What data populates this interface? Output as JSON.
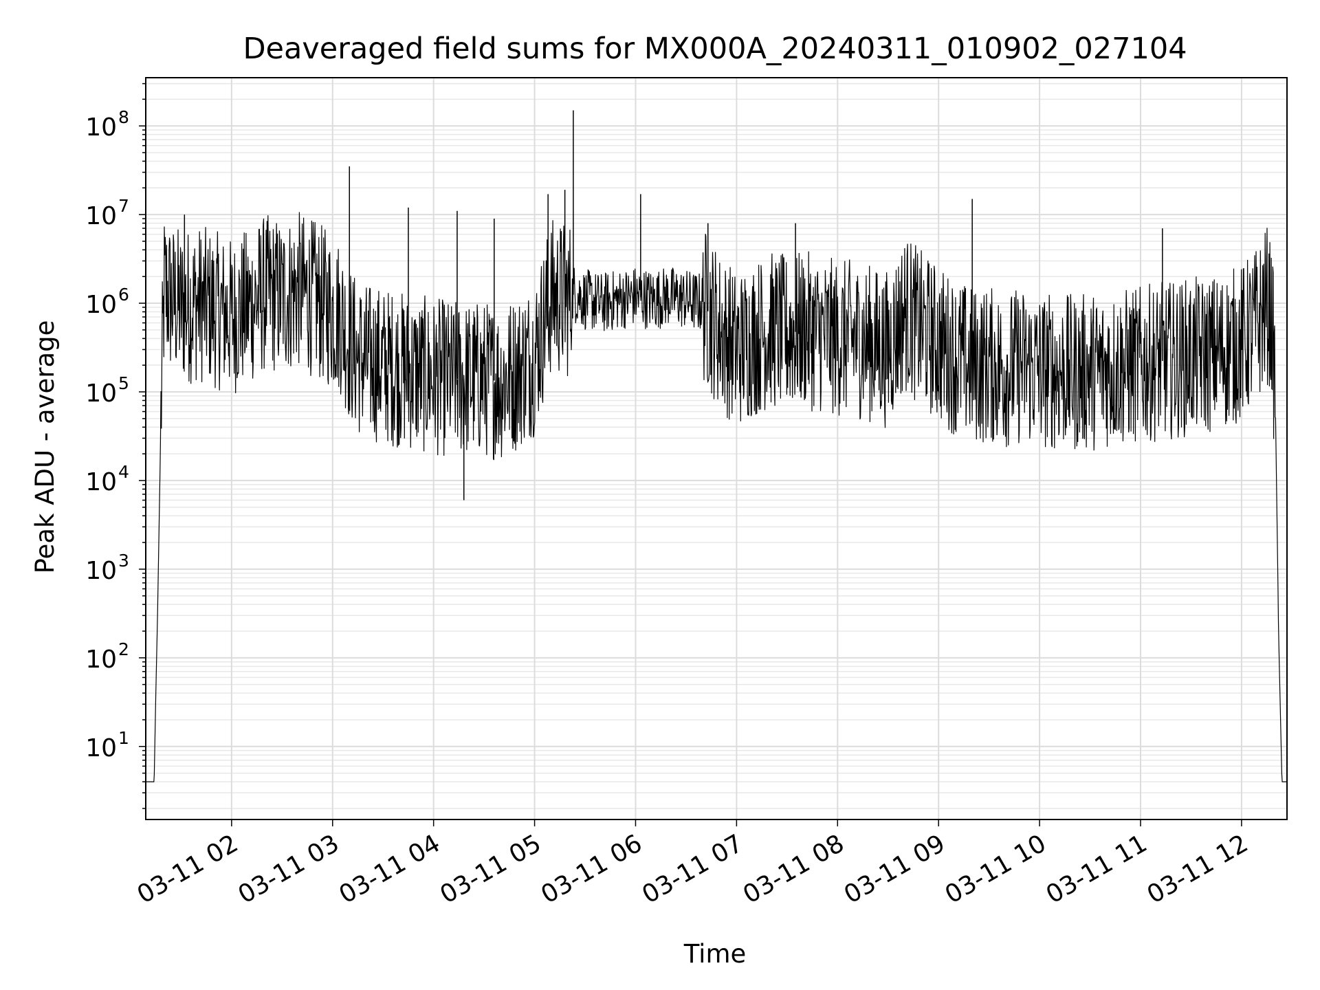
{
  "chart_data": {
    "type": "line",
    "title": "Deaveraged field sums for MX000A_20240311_010902_027104",
    "xlabel": "Time",
    "ylabel": "Peak ADU - average",
    "x_axis_type": "datetime",
    "xlim": [
      "2024-03-11 01:09",
      "2024-03-11 12:27"
    ],
    "ylim": [
      1.5,
      350000000.0
    ],
    "yscale": "log",
    "grid": "major and minor",
    "line_color": "#000000",
    "x_ticks": [
      {
        "value": "2024-03-11 02:00",
        "label": "03-11 02"
      },
      {
        "value": "2024-03-11 03:00",
        "label": "03-11 03"
      },
      {
        "value": "2024-03-11 04:00",
        "label": "03-11 04"
      },
      {
        "value": "2024-03-11 05:00",
        "label": "03-11 05"
      },
      {
        "value": "2024-03-11 06:00",
        "label": "03-11 06"
      },
      {
        "value": "2024-03-11 07:00",
        "label": "03-11 07"
      },
      {
        "value": "2024-03-11 08:00",
        "label": "03-11 08"
      },
      {
        "value": "2024-03-11 09:00",
        "label": "03-11 09"
      },
      {
        "value": "2024-03-11 10:00",
        "label": "03-11 10"
      },
      {
        "value": "2024-03-11 11:00",
        "label": "03-11 11"
      },
      {
        "value": "2024-03-11 12:00",
        "label": "03-11 12"
      }
    ],
    "y_ticks": [
      {
        "value": 10,
        "base": "10",
        "exp": "1"
      },
      {
        "value": 100,
        "base": "10",
        "exp": "2"
      },
      {
        "value": 1000,
        "base": "10",
        "exp": "3"
      },
      {
        "value": 10000,
        "base": "10",
        "exp": "4"
      },
      {
        "value": 100000,
        "base": "10",
        "exp": "5"
      },
      {
        "value": 1000000,
        "base": "10",
        "exp": "6"
      },
      {
        "value": 10000000,
        "base": "10",
        "exp": "7"
      },
      {
        "value": 100000000,
        "base": "10",
        "exp": "8"
      }
    ],
    "series": [
      {
        "x": [
          "2024-03-11 01:09",
          "2024-03-11 01:14",
          "2024-03-11 01:15",
          "2024-03-11 01:16",
          "2024-03-11 01:18",
          "2024-03-11 01:20",
          "2024-03-11 01:24",
          "2024-03-11 01:30",
          "2024-03-11 01:40",
          "2024-03-11 01:50",
          "2024-03-11 02:00",
          "2024-03-11 02:10",
          "2024-03-11 02:20",
          "2024-03-11 02:30",
          "2024-03-11 02:40",
          "2024-03-11 02:50",
          "2024-03-11 03:00",
          "2024-03-11 03:05",
          "2024-03-11 03:10",
          "2024-03-11 03:15",
          "2024-03-11 03:20",
          "2024-03-11 03:30",
          "2024-03-11 03:40",
          "2024-03-11 03:50",
          "2024-03-11 04:00",
          "2024-03-11 04:10",
          "2024-03-11 04:20",
          "2024-03-11 04:30",
          "2024-03-11 04:40",
          "2024-03-11 04:50",
          "2024-03-11 05:00",
          "2024-03-11 05:10",
          "2024-03-11 05:20",
          "2024-03-11 05:24",
          "2024-03-11 05:30",
          "2024-03-11 05:40",
          "2024-03-11 05:50",
          "2024-03-11 06:00",
          "2024-03-11 06:10",
          "2024-03-11 06:20",
          "2024-03-11 06:30",
          "2024-03-11 06:40",
          "2024-03-11 06:50",
          "2024-03-11 07:00",
          "2024-03-11 07:10",
          "2024-03-11 07:20",
          "2024-03-11 07:30",
          "2024-03-11 07:40",
          "2024-03-11 07:50",
          "2024-03-11 08:00",
          "2024-03-11 08:10",
          "2024-03-11 08:20",
          "2024-03-11 08:30",
          "2024-03-11 08:40",
          "2024-03-11 08:50",
          "2024-03-11 09:00",
          "2024-03-11 09:10",
          "2024-03-11 09:20",
          "2024-03-11 09:30",
          "2024-03-11 09:40",
          "2024-03-11 09:50",
          "2024-03-11 10:00",
          "2024-03-11 10:10",
          "2024-03-11 10:20",
          "2024-03-11 10:30",
          "2024-03-11 10:40",
          "2024-03-11 10:50",
          "2024-03-11 11:00",
          "2024-03-11 11:10",
          "2024-03-11 11:20",
          "2024-03-11 11:30",
          "2024-03-11 11:40",
          "2024-03-11 11:50",
          "2024-03-11 12:00",
          "2024-03-11 12:10",
          "2024-03-11 12:15",
          "2024-03-11 12:18",
          "2024-03-11 12:20",
          "2024-03-11 12:22",
          "2024-03-11 12:24",
          "2024-03-11 12:27"
        ],
        "y": [
          4,
          4,
          40,
          300,
          50000,
          1500000,
          1100000,
          900000,
          1000000,
          850000,
          700000,
          900000,
          1300000,
          1200000,
          1400000,
          1100000,
          800000,
          700000,
          350000,
          250000,
          220000,
          200000,
          180000,
          160000,
          150000,
          140000,
          140000,
          140000,
          130000,
          170000,
          250000,
          1200000,
          1100000,
          1300000,
          1100000,
          1000000,
          1100000,
          1200000,
          1100000,
          1200000,
          1100000,
          1000000,
          500000,
          300000,
          400000,
          500000,
          450000,
          500000,
          450000,
          400000,
          400000,
          350000,
          300000,
          800000,
          500000,
          350000,
          250000,
          200000,
          200000,
          180000,
          200000,
          180000,
          170000,
          160000,
          170000,
          180000,
          190000,
          200000,
          220000,
          230000,
          250000,
          260000,
          300000,
          350000,
          600000,
          1000000,
          600000,
          100000,
          200,
          4,
          4
        ]
      }
    ],
    "spikes": [
      {
        "x": "2024-03-11 01:32",
        "y": 10000000
      },
      {
        "x": "2024-03-11 03:10",
        "y": 35000000
      },
      {
        "x": "2024-03-11 03:45",
        "y": 12000000
      },
      {
        "x": "2024-03-11 04:14",
        "y": 11000000
      },
      {
        "x": "2024-03-11 04:18",
        "y": 6000
      },
      {
        "x": "2024-03-11 04:36",
        "y": 9000000
      },
      {
        "x": "2024-03-11 05:08",
        "y": 17000000
      },
      {
        "x": "2024-03-11 05:18",
        "y": 19000000
      },
      {
        "x": "2024-03-11 05:23",
        "y": 150000000
      },
      {
        "x": "2024-03-11 06:03",
        "y": 17000000
      },
      {
        "x": "2024-03-11 06:43",
        "y": 8000000
      },
      {
        "x": "2024-03-11 07:35",
        "y": 8000000
      },
      {
        "x": "2024-03-11 09:20",
        "y": 15000000
      },
      {
        "x": "2024-03-11 11:13",
        "y": 7000000
      }
    ]
  }
}
